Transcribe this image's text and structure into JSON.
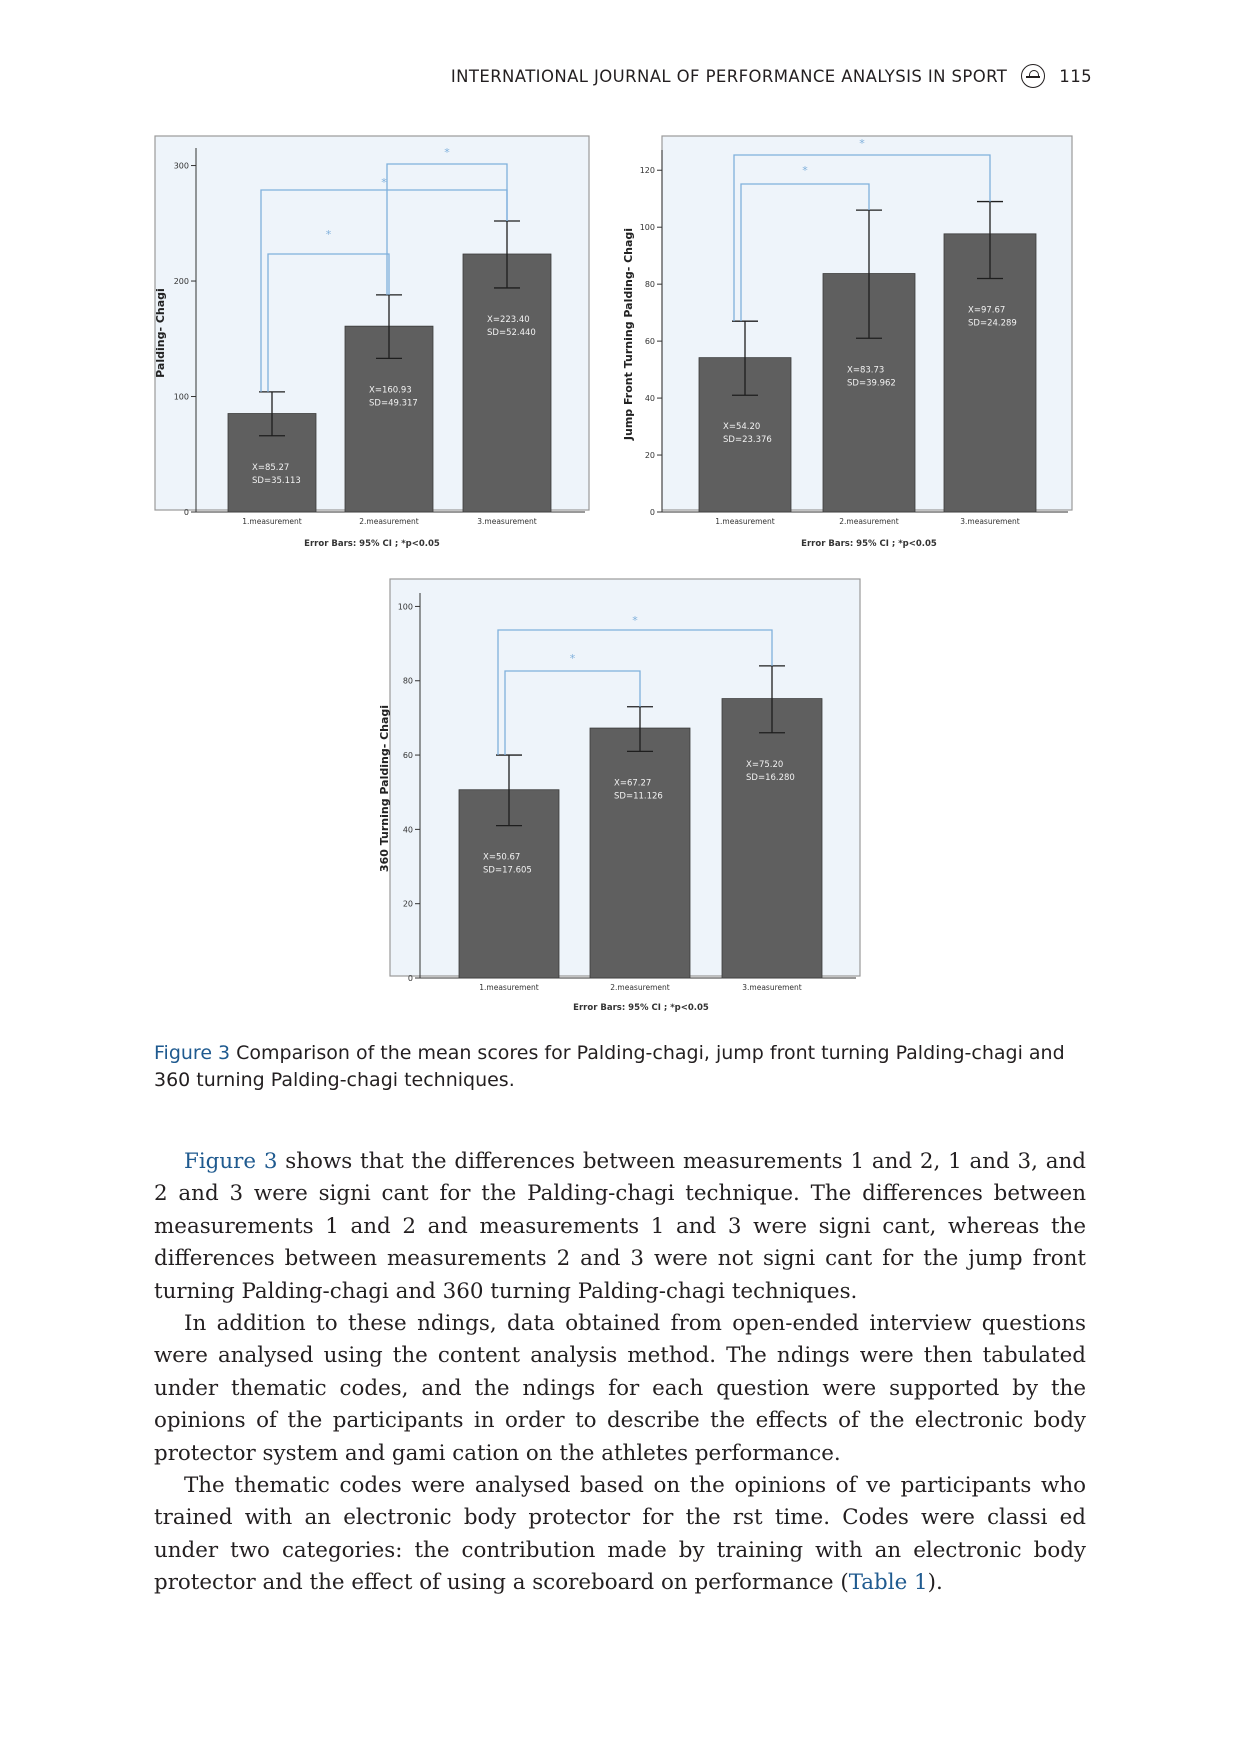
{
  "header": {
    "journal": "INTERNATIONAL JOURNAL OF PERFORMANCE ANALYSIS IN SPORT",
    "page_number": "115",
    "logo_icon": "journal-logo-icon"
  },
  "colors": {
    "bar": "#5f5f5f",
    "panel_bg": "#eef4fa",
    "bracket": "#7fb0dc",
    "link": "#1f5a8f"
  },
  "chart_data": [
    {
      "type": "bar",
      "ylabel": "Palding- Chagi",
      "categories": [
        "1.measurement",
        "2.measurement",
        "3.measurement"
      ],
      "values": [
        85.27,
        160.93,
        223.4
      ],
      "error_low": [
        66,
        133,
        194
      ],
      "error_high": [
        104,
        188,
        252
      ],
      "bar_labels": [
        [
          "X=85.27",
          "SD=35.113"
        ],
        [
          "X=160.93",
          "SD=49.317"
        ],
        [
          "X=223.40",
          "SD=52.440"
        ]
      ],
      "ylim": [
        0,
        310
      ],
      "yticks": [
        0,
        100,
        200,
        300
      ],
      "note": "Error Bars: 95% CI ; *p<0.05",
      "significance": [
        {
          "from": 0,
          "to": 1,
          "mark": "*"
        },
        {
          "from": 0,
          "to": 2,
          "mark": "*"
        },
        {
          "from": 1,
          "to": 2,
          "mark": "*"
        }
      ]
    },
    {
      "type": "bar",
      "ylabel": "Jump Front Turning Palding- Chagi",
      "categories": [
        "1.measurement",
        "2.measurement",
        "3.measurement"
      ],
      "values": [
        54.2,
        83.73,
        97.67
      ],
      "error_low": [
        41,
        61,
        82
      ],
      "error_high": [
        67,
        106,
        109
      ],
      "bar_labels": [
        [
          "X=54.20",
          "SD=23.376"
        ],
        [
          "X=83.73",
          "SD=39.962"
        ],
        [
          "X=97.67",
          "SD=24.289"
        ]
      ],
      "ylim": [
        0,
        125
      ],
      "yticks": [
        0,
        20,
        40,
        60,
        80,
        100,
        120
      ],
      "note": "Error Bars: 95% CI ; *p<0.05",
      "significance": [
        {
          "from": 0,
          "to": 1,
          "mark": "*"
        },
        {
          "from": 0,
          "to": 2,
          "mark": "*"
        }
      ]
    },
    {
      "type": "bar",
      "ylabel": "360 Turning Palding- Chagi",
      "categories": [
        "1.measurement",
        "2.measurement",
        "3.measurement"
      ],
      "values": [
        50.67,
        67.27,
        75.2
      ],
      "error_low": [
        41,
        61,
        66
      ],
      "error_high": [
        60,
        73,
        84
      ],
      "bar_labels": [
        [
          "X=50.67",
          "SD=17.605"
        ],
        [
          "X=67.27",
          "SD=11.126"
        ],
        [
          "X=75.20",
          "SD=16.280"
        ]
      ],
      "ylim": [
        0,
        102
      ],
      "yticks": [
        0,
        20,
        40,
        60,
        80,
        100
      ],
      "note": "Error Bars: 95% CI ; *p<0.05",
      "significance": [
        {
          "from": 0,
          "to": 1,
          "mark": "*"
        },
        {
          "from": 0,
          "to": 2,
          "mark": "*"
        }
      ]
    }
  ],
  "caption": {
    "label": "Figure 3",
    "text": "Comparison of the mean scores for Palding-chagi, jump front turning Palding-chagi and 360 turning Palding-chagi techniques."
  },
  "body": {
    "p1_link": "Figure 3",
    "p1_text": " shows that the differences between measurements 1 and 2, 1 and 3, and 2 and 3 were signi cant for the Palding-chagi technique. The differences between measurements 1 and 2 and measurements 1 and 3 were signi cant, whereas the differences between measurements 2 and 3 were not signi cant for the jump front turning Palding-chagi and 360 turning Palding-chagi techniques.",
    "p2_text": "In addition to these ndings, data obtained from open-ended interview questions were analysed using the content analysis method. The ndings were then tabulated under thematic codes, and the ndings for each question were supported by the opinions of the participants in order to describe the effects of the electronic body protector system and gami cation on the athletes performance.",
    "p3_text": "The thematic codes were analysed based on the opinions of ve participants who trained with an electronic body protector for the rst time. Codes were classi ed under two categories: the contribution made by training with an electronic body protector and the effect of using a scoreboard on performance (",
    "p3_link": "Table 1",
    "p3_end": ")."
  }
}
